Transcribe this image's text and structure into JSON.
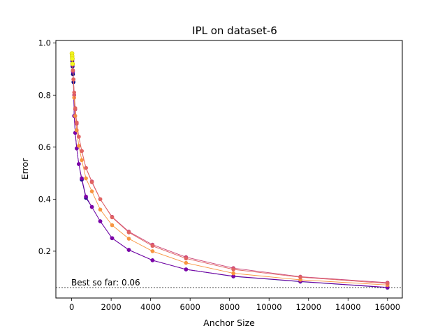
{
  "chart_data": {
    "type": "line",
    "title": "IPL on dataset-6",
    "xlabel": "Anchor Size",
    "ylabel": "Error",
    "xlim": [
      -800,
      16750
    ],
    "ylim": [
      0.02,
      1.01
    ],
    "xticks": [
      0,
      2000,
      4000,
      6000,
      8000,
      10000,
      12000,
      14000,
      16000
    ],
    "yticks": [
      0.2,
      0.4,
      0.6,
      0.8,
      1.0
    ],
    "xtick_labels": [
      "0",
      "2000",
      "4000",
      "6000",
      "8000",
      "10000",
      "12000",
      "14000",
      "16000"
    ],
    "ytick_labels": [
      "0.2",
      "0.4",
      "0.6",
      "0.8",
      "1.0"
    ],
    "grid": false,
    "legend": "none",
    "x": [
      16,
      23,
      32,
      45,
      64,
      91,
      128,
      181,
      256,
      362,
      512,
      724,
      1024,
      1448,
      2048,
      2896,
      4096,
      5793,
      8192,
      11585,
      16000
    ],
    "series": [
      {
        "color": "#0d0887",
        "values": [
          0.955,
          0.945,
          0.93,
          0.91,
          0.88,
          0.85,
          0.72,
          0.655,
          0.595,
          0.535,
          0.475,
          0.405,
          0.37,
          0.315,
          0.25,
          0.205,
          0.165,
          0.13,
          0.103,
          0.083,
          0.06
        ]
      },
      {
        "color": "#7e03a8",
        "values": [
          0.96,
          0.95,
          0.935,
          0.915,
          0.89,
          0.86,
          0.72,
          0.655,
          0.595,
          0.535,
          0.48,
          0.41,
          0.37,
          0.315,
          0.25,
          0.205,
          0.165,
          0.13,
          0.104,
          0.084,
          0.061
        ]
      },
      {
        "color": "#cc4778",
        "values": [
          0.96,
          0.95,
          0.94,
          0.92,
          0.895,
          0.86,
          0.8,
          0.745,
          0.69,
          0.64,
          0.585,
          0.52,
          0.468,
          0.4,
          0.332,
          0.275,
          0.225,
          0.177,
          0.135,
          0.102,
          0.079
        ]
      },
      {
        "color": "#f89540",
        "values": [
          0.96,
          0.95,
          0.94,
          0.92,
          0.895,
          0.86,
          0.79,
          0.72,
          0.665,
          0.605,
          0.55,
          0.48,
          0.43,
          0.36,
          0.3,
          0.248,
          0.2,
          0.155,
          0.115,
          0.09,
          0.07
        ]
      },
      {
        "color": "#e16462",
        "values": [
          0.96,
          0.95,
          0.94,
          0.92,
          0.895,
          0.86,
          0.81,
          0.75,
          0.695,
          0.64,
          0.585,
          0.52,
          0.465,
          0.4,
          0.33,
          0.272,
          0.22,
          0.172,
          0.13,
          0.1,
          0.076
        ]
      }
    ],
    "reference_line": {
      "y": 0.06,
      "style": "dotted",
      "color": "#000000"
    },
    "annotation": "Best so far: 0.06",
    "highlight_color": "#f0f921"
  }
}
